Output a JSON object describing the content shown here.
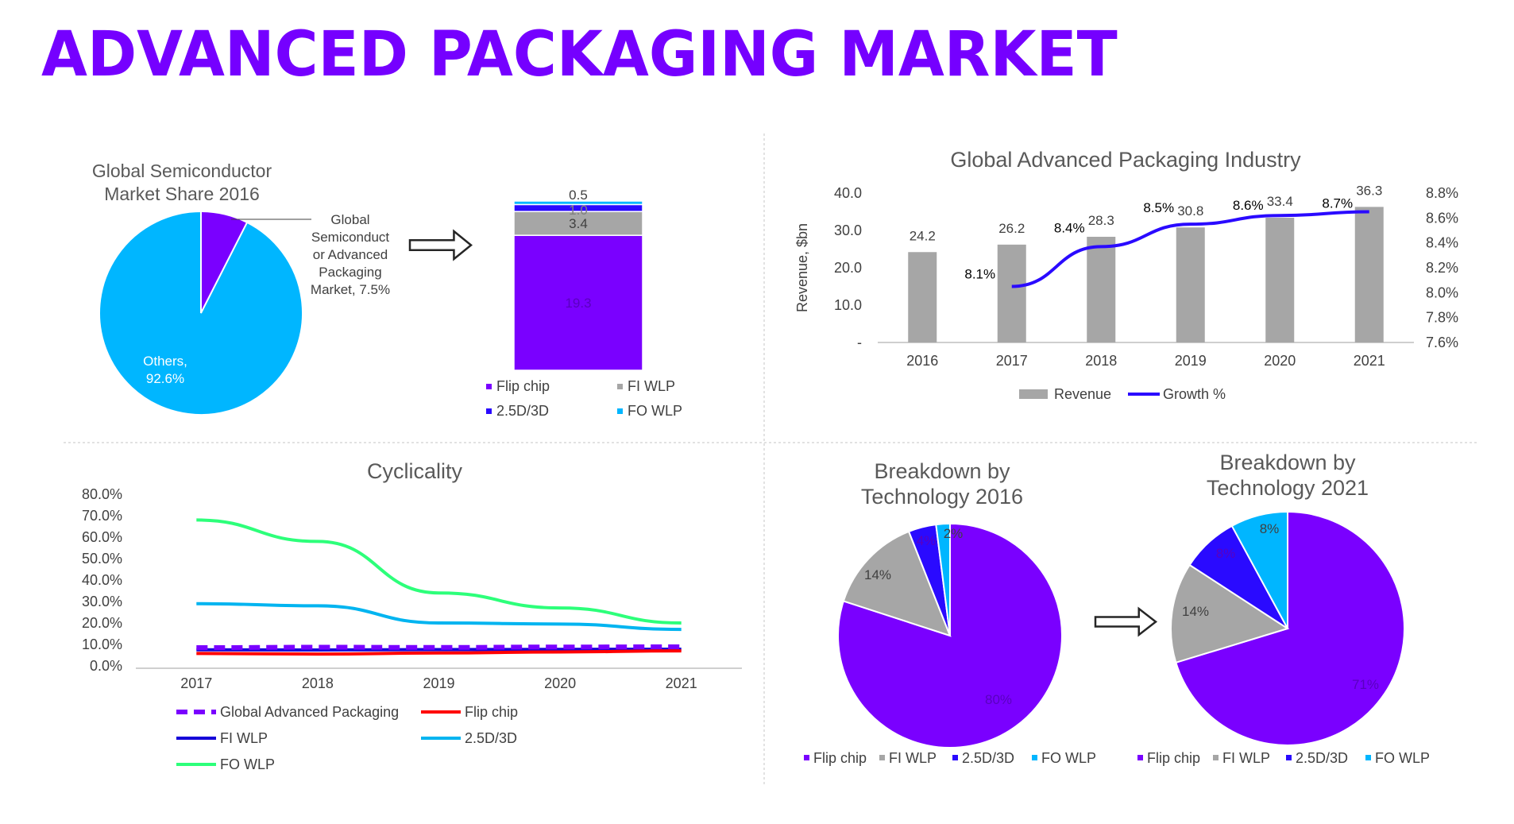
{
  "page": {
    "title": "ADVANCED PACKAGING MARKET"
  },
  "colors": {
    "flip_chip": "#7a00ff",
    "fi_wlp": "#a6a6a6",
    "d25_3d": "#2a0aff",
    "fo_wlp": "#00b6ff",
    "others": "#00b6ff",
    "revenue_bar": "#a6a6a6",
    "growth_line": "#2a0aff",
    "cyc_global": "#7a00ff",
    "cyc_flip": "#ff0000",
    "cyc_fi": "#1500d8",
    "cyc_25d": "#00b4f0",
    "cyc_fo": "#2dff7a"
  },
  "legend_techs": [
    "Flip chip",
    "FI WLP",
    "2.5D/3D",
    "FO WLP"
  ],
  "arrow_icon": "right-arrow-icon",
  "chart_data": [
    {
      "id": "market-share-2016",
      "type": "pie",
      "title": "Global Semiconductor Market Share 2016",
      "title_lines": [
        "Global Semiconductor",
        "Market Share 2016"
      ],
      "slices": [
        {
          "name": "Global Semiconductor or Advanced Packaging Market",
          "value": 7.5,
          "label_lines": [
            "Global",
            "Semiconduct",
            "or Advanced",
            "Packaging",
            "Market, 7.5%"
          ]
        },
        {
          "name": "Others",
          "value": 92.6,
          "label_lines": [
            "Others,",
            "92.6%"
          ]
        }
      ]
    },
    {
      "id": "packaging-stack",
      "type": "bar",
      "stacked": true,
      "series": [
        {
          "name": "Flip chip",
          "value": 19.3,
          "label": "19.3"
        },
        {
          "name": "FI WLP",
          "value": 3.4,
          "label": "3.4"
        },
        {
          "name": "2.5D/3D",
          "value": 1.0,
          "label": "1.0"
        },
        {
          "name": "FO WLP",
          "value": 0.5,
          "label": "0.5"
        }
      ],
      "legend": [
        "Flip chip",
        "FI WLP",
        "2.5D/3D",
        "FO WLP"
      ]
    },
    {
      "id": "industry",
      "type": "bar",
      "title": "Global Advanced Packaging Industry",
      "categories": [
        "2016",
        "2017",
        "2018",
        "2019",
        "2020",
        "2021"
      ],
      "series": [
        {
          "name": "Revenue",
          "type": "bar",
          "axis": "left",
          "values": [
            24.2,
            26.2,
            28.3,
            30.8,
            33.4,
            36.3
          ],
          "labels": [
            "24.2",
            "26.2",
            "28.3",
            "30.8",
            "33.4",
            "36.3"
          ]
        },
        {
          "name": "Growth %",
          "type": "line",
          "axis": "right",
          "values": [
            null,
            8.1,
            8.4,
            8.5,
            8.6,
            8.7
          ],
          "labels": [
            "",
            "8.1%",
            "8.4%",
            "8.5%",
            "8.6%",
            "8.7%"
          ],
          "plot_values": [
            null,
            8.05,
            8.37,
            8.55,
            8.62,
            8.65
          ]
        }
      ],
      "ylabel": "Revenue, $bn",
      "ylim": [
        0,
        40
      ],
      "y_ticks": [
        "-",
        "10.0",
        "20.0",
        "30.0",
        "40.0"
      ],
      "y2lim": [
        7.6,
        8.8
      ],
      "y2_ticks": [
        "7.6%",
        "7.8%",
        "8.0%",
        "8.2%",
        "8.4%",
        "8.6%",
        "8.8%"
      ],
      "legend": [
        "Revenue",
        "Growth %"
      ]
    },
    {
      "id": "cyclicality",
      "type": "line",
      "title": "Cyclicality",
      "x": [
        "2017",
        "2018",
        "2019",
        "2020",
        "2021"
      ],
      "ylim": [
        0,
        80
      ],
      "y_ticks": [
        "0.0%",
        "10.0%",
        "20.0%",
        "30.0%",
        "40.0%",
        "50.0%",
        "60.0%",
        "70.0%",
        "80.0%"
      ],
      "series": [
        {
          "name": "Global Advanced Packaging",
          "values": [
            8.5,
            8.7,
            8.6,
            8.8,
            8.9
          ],
          "dashed": true
        },
        {
          "name": "Flip chip",
          "values": [
            5.8,
            5.5,
            6.0,
            6.5,
            7.0
          ]
        },
        {
          "name": "FI WLP",
          "values": [
            7.5,
            7.4,
            7.6,
            7.7,
            7.8
          ]
        },
        {
          "name": "2.5D/3D",
          "values": [
            29.0,
            28.0,
            20.0,
            19.5,
            17.0
          ]
        },
        {
          "name": "FO WLP",
          "values": [
            68.0,
            58.0,
            34.0,
            27.0,
            20.0
          ]
        }
      ],
      "legend": [
        "Global Advanced Packaging",
        "Flip chip",
        "FI WLP",
        "2.5D/3D",
        "FO WLP"
      ]
    },
    {
      "id": "tech-2016",
      "type": "pie",
      "title": "Breakdown by Technology 2016",
      "title_lines": [
        "Breakdown by",
        "Technology 2016"
      ],
      "slices": [
        {
          "name": "Flip chip",
          "value": 80,
          "label": "80%"
        },
        {
          "name": "FI WLP",
          "value": 14,
          "label": "14%"
        },
        {
          "name": "2.5D/3D",
          "value": 4,
          "label": "4%"
        },
        {
          "name": "FO WLP",
          "value": 2,
          "label": "2%"
        }
      ]
    },
    {
      "id": "tech-2021",
      "type": "pie",
      "title": "Breakdown by Technology 2021",
      "title_lines": [
        "Breakdown by",
        "Technology 2021"
      ],
      "slices": [
        {
          "name": "Flip chip",
          "value": 71,
          "label": "71%"
        },
        {
          "name": "FI WLP",
          "value": 14,
          "label": "14%"
        },
        {
          "name": "2.5D/3D",
          "value": 8,
          "label": "8%"
        },
        {
          "name": "FO WLP",
          "value": 8,
          "label": "8%"
        }
      ]
    }
  ]
}
